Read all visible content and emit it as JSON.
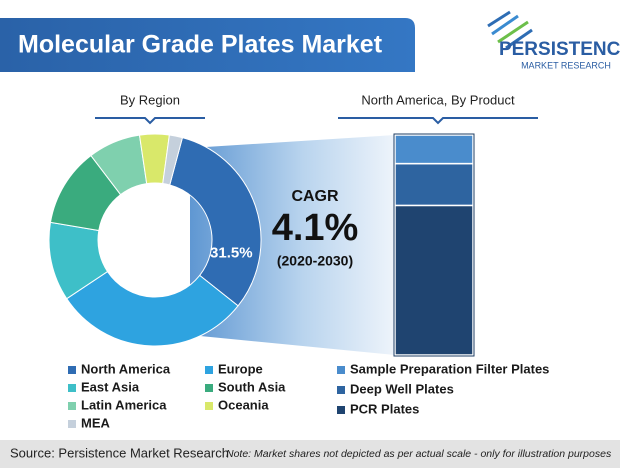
{
  "header": {
    "title": "Molecular Grade Plates Market",
    "logo_main": "PERSISTENCE",
    "logo_sub": "MARKET RESEARCH"
  },
  "chart_data": [
    {
      "type": "donut",
      "title": "By Region",
      "categories": [
        "North America",
        "Europe",
        "East Asia",
        "South Asia",
        "Latin America",
        "Oceania",
        "MEA"
      ],
      "values": [
        31.5,
        30,
        12,
        12,
        8,
        4.5,
        2
      ],
      "value_labels": [
        "31.5%",
        null,
        null,
        null,
        null,
        null,
        null
      ],
      "colors": [
        "#2f6cb3",
        "#2ea3e0",
        "#3ebfc8",
        "#3aab7e",
        "#7fd0ae",
        "#d9e86a",
        "#c5d0dc"
      ]
    },
    {
      "type": "stacked_bar",
      "title": "North America, By Product",
      "series": [
        {
          "name": "Sample Preparation Filter Plates",
          "color": "#4a8ccc",
          "values": [
            13
          ]
        },
        {
          "name": "Deep Well Plates",
          "color": "#2e64a0",
          "values": [
            19
          ]
        },
        {
          "name": "PCR Plates",
          "color": "#1f4470",
          "values": [
            68
          ]
        }
      ]
    }
  ],
  "callout": {
    "label": "CAGR",
    "value": "4.1%",
    "period": "(2020-2030)"
  },
  "footer": {
    "source": "Source: Persistence Market Research",
    "note": "Note: Market shares not depicted as per actual scale - only for illustration purposes"
  }
}
